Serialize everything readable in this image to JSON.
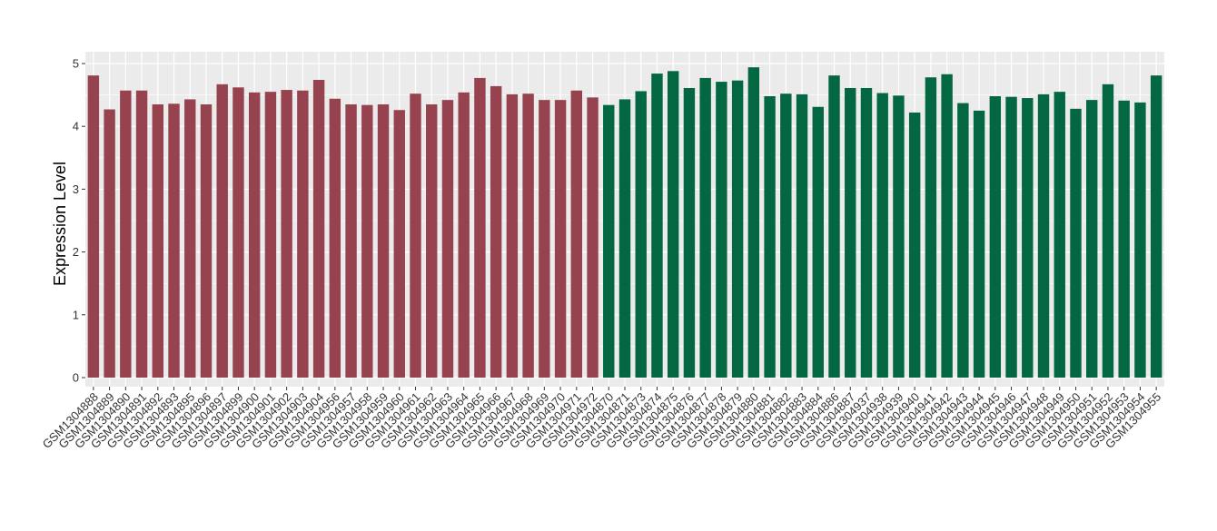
{
  "chart_data": {
    "type": "bar",
    "title": "",
    "xlabel": "",
    "ylabel": "Expression Level",
    "ylim": [
      0,
      5
    ],
    "yticks": [
      0,
      1,
      2,
      3,
      4,
      5
    ],
    "grid": true,
    "background_color": "#EBEBEB",
    "grid_color": "#FFFFFF",
    "categories": [
      "GSM1304888",
      "GSM1304889",
      "GSM1304890",
      "GSM1304891",
      "GSM1304892",
      "GSM1304893",
      "GSM1304895",
      "GSM1304896",
      "GSM1304897",
      "GSM1304899",
      "GSM1304900",
      "GSM1304901",
      "GSM1304902",
      "GSM1304903",
      "GSM1304904",
      "GSM1304956",
      "GSM1304957",
      "GSM1304958",
      "GSM1304959",
      "GSM1304960",
      "GSM1304961",
      "GSM1304962",
      "GSM1304963",
      "GSM1304964",
      "GSM1304965",
      "GSM1304966",
      "GSM1304967",
      "GSM1304968",
      "GSM1304969",
      "GSM1304970",
      "GSM1304971",
      "GSM1304972",
      "GSM1304870",
      "GSM1304871",
      "GSM1304873",
      "GSM1304874",
      "GSM1304875",
      "GSM1304876",
      "GSM1304877",
      "GSM1304878",
      "GSM1304879",
      "GSM1304880",
      "GSM1304881",
      "GSM1304882",
      "GSM1304883",
      "GSM1304884",
      "GSM1304886",
      "GSM1304887",
      "GSM1304937",
      "GSM1304938",
      "GSM1304939",
      "GSM1304940",
      "GSM1304941",
      "GSM1304942",
      "GSM1304943",
      "GSM1304944",
      "GSM1304945",
      "GSM1304946",
      "GSM1304947",
      "GSM1304948",
      "GSM1304949",
      "GSM1304950",
      "GSM1304951",
      "GSM1304952",
      "GSM1304953",
      "GSM1304954",
      "GSM1304955"
    ],
    "values": [
      4.81,
      4.27,
      4.57,
      4.57,
      4.35,
      4.36,
      4.43,
      4.35,
      4.67,
      4.62,
      4.54,
      4.55,
      4.58,
      4.57,
      4.74,
      4.44,
      4.35,
      4.34,
      4.35,
      4.26,
      4.52,
      4.35,
      4.42,
      4.54,
      4.77,
      4.64,
      4.51,
      4.52,
      4.42,
      4.42,
      4.57,
      4.46,
      4.34,
      4.43,
      4.56,
      4.84,
      4.88,
      4.61,
      4.77,
      4.71,
      4.73,
      4.94,
      4.48,
      4.52,
      4.51,
      4.31,
      4.81,
      4.61,
      4.61,
      4.53,
      4.49,
      4.22,
      4.78,
      4.83,
      4.37,
      4.25,
      4.48,
      4.47,
      4.45,
      4.51,
      4.55,
      4.28,
      4.42,
      4.67,
      4.41,
      4.38,
      4.81
    ],
    "bar_colors": {
      "group1": "#96434F",
      "group2": "#036741"
    },
    "group1_count": 32
  }
}
